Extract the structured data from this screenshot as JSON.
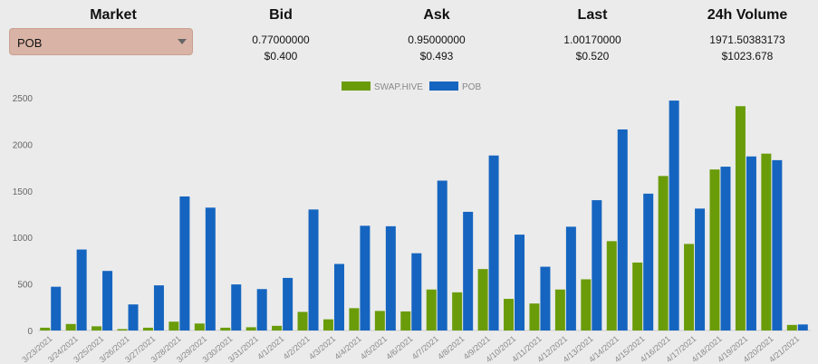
{
  "header": {
    "market_label": "Market",
    "bid_label": "Bid",
    "ask_label": "Ask",
    "last_label": "Last",
    "volume_label": "24h Volume"
  },
  "market_select": {
    "value": "POB"
  },
  "bid": {
    "price": "0.77000000",
    "usd": "$0.400"
  },
  "ask": {
    "price": "0.95000000",
    "usd": "$0.493"
  },
  "last": {
    "price": "1.00170000",
    "usd": "$0.520"
  },
  "volume": {
    "amount": "1971.50383173",
    "usd": "$1023.678"
  },
  "colors": {
    "swap_hive": "#6a9c0a",
    "pob": "#1565c0",
    "select_bg": "#d9b4a6"
  },
  "chart_data": {
    "type": "bar",
    "categories": [
      "3/23/2021",
      "3/24/2021",
      "3/25/2021",
      "3/26/2021",
      "3/27/2021",
      "3/28/2021",
      "3/29/2021",
      "3/30/2021",
      "3/31/2021",
      "4/1/2021",
      "4/2/2021",
      "4/3/2021",
      "4/4/2021",
      "4/5/2021",
      "4/6/2021",
      "4/7/2021",
      "4/8/2021",
      "4/9/2021",
      "4/10/2021",
      "4/11/2021",
      "4/12/2021",
      "4/13/2021",
      "4/14/2021",
      "4/15/2021",
      "4/16/2021",
      "4/17/2021",
      "4/18/2021",
      "4/19/2021",
      "4/20/2021",
      "4/21/2021"
    ],
    "series": [
      {
        "name": "SWAP.HIVE",
        "values": [
          30,
          70,
          45,
          15,
          30,
          95,
          75,
          30,
          35,
          50,
          200,
          120,
          240,
          210,
          205,
          440,
          410,
          660,
          340,
          290,
          440,
          550,
          960,
          730,
          1660,
          930,
          1730,
          2410,
          1900,
          60
        ]
      },
      {
        "name": "POB",
        "values": [
          470,
          870,
          640,
          280,
          485,
          1440,
          1320,
          495,
          445,
          565,
          1300,
          715,
          1125,
          1120,
          830,
          1610,
          1275,
          1880,
          1030,
          685,
          1115,
          1400,
          2160,
          1470,
          2470,
          1310,
          1760,
          1870,
          1830,
          65
        ]
      }
    ],
    "yticks": [
      0,
      500,
      1000,
      1500,
      2000,
      2500
    ],
    "ylim": [
      0,
      2500
    ],
    "legend": "top-center",
    "grid": false
  }
}
